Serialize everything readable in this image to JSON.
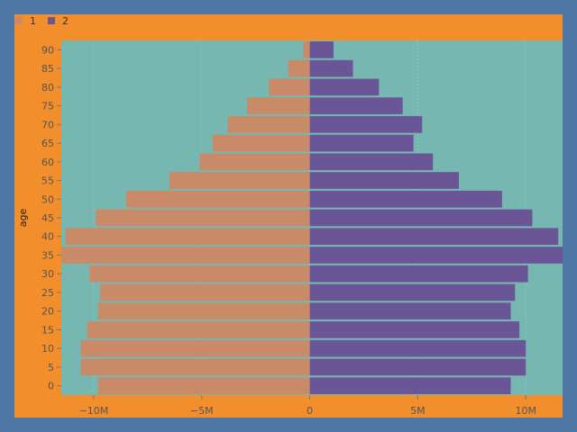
{
  "chart_data": {
    "type": "bar",
    "orientation": "horizontal",
    "layout": "population-pyramid",
    "ylabel": "age",
    "xlabel": "",
    "categories": [
      0,
      5,
      10,
      15,
      20,
      25,
      30,
      35,
      40,
      45,
      50,
      55,
      60,
      65,
      70,
      75,
      80,
      85,
      90
    ],
    "xlim": [
      -11500000,
      11700000
    ],
    "x_ticks": [
      {
        "value": -10000000,
        "label": "−10M"
      },
      {
        "value": -5000000,
        "label": "−5M"
      },
      {
        "value": 0,
        "label": "0"
      },
      {
        "value": 5000000,
        "label": "5M"
      },
      {
        "value": 10000000,
        "label": "10M"
      }
    ],
    "series": [
      {
        "name": "1",
        "color": "#c98a67",
        "values": [
          -9800000,
          -10600000,
          -10600000,
          -10300000,
          -9800000,
          -9700000,
          -10200000,
          -11500000,
          -11300000,
          -9900000,
          -8500000,
          -6500000,
          -5100000,
          -4500000,
          -3800000,
          -2900000,
          -1900000,
          -1000000,
          -300000
        ]
      },
      {
        "name": "2",
        "color": "#6a5696",
        "values": [
          9300000,
          10000000,
          10000000,
          9700000,
          9300000,
          9500000,
          10100000,
          11700000,
          11500000,
          10300000,
          8900000,
          6900000,
          5700000,
          4800000,
          5200000,
          4300000,
          3200000,
          2000000,
          1100000
        ]
      }
    ],
    "legend": {
      "position": "top-left",
      "entries": [
        "1",
        "2"
      ]
    },
    "grid": true,
    "colors": {
      "page_bg": "#4e79a7",
      "frame_bg": "#f28e2b",
      "plot_bg": "#76b7b2"
    }
  }
}
